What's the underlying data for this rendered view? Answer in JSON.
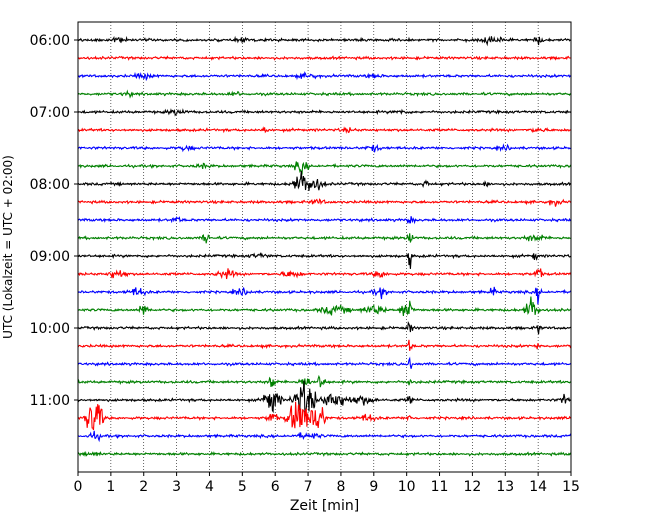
{
  "chart_data": {
    "type": "line",
    "title": "",
    "xlabel": "Zeit  [min]",
    "ylabel": "UTC (Lokalzeit = UTC + 02:00)",
    "xlim": [
      0,
      15
    ],
    "x_ticks": [
      0,
      1,
      2,
      3,
      4,
      5,
      6,
      7,
      8,
      9,
      10,
      11,
      12,
      13,
      14,
      15
    ],
    "y_tick_labels": [
      "06:00",
      "07:00",
      "08:00",
      "09:00",
      "10:00",
      "11:00"
    ],
    "grid": "vertical dotted lines at each minute",
    "series_colors": [
      "#000000",
      "#ff0000",
      "#0000ff",
      "#008000"
    ],
    "traces": [
      {
        "start": "06:00",
        "color": "#000000"
      },
      {
        "start": "06:15",
        "color": "#ff0000"
      },
      {
        "start": "06:30",
        "color": "#0000ff"
      },
      {
        "start": "06:45",
        "color": "#008000"
      },
      {
        "start": "07:00",
        "color": "#000000"
      },
      {
        "start": "07:15",
        "color": "#ff0000"
      },
      {
        "start": "07:30",
        "color": "#0000ff"
      },
      {
        "start": "07:45",
        "color": "#008000"
      },
      {
        "start": "08:00",
        "color": "#000000"
      },
      {
        "start": "08:15",
        "color": "#ff0000"
      },
      {
        "start": "08:30",
        "color": "#0000ff"
      },
      {
        "start": "08:45",
        "color": "#008000"
      },
      {
        "start": "09:00",
        "color": "#000000"
      },
      {
        "start": "09:15",
        "color": "#ff0000"
      },
      {
        "start": "09:30",
        "color": "#0000ff"
      },
      {
        "start": "09:45",
        "color": "#008000"
      },
      {
        "start": "10:00",
        "color": "#000000"
      },
      {
        "start": "10:15",
        "color": "#ff0000"
      },
      {
        "start": "10:30",
        "color": "#0000ff"
      },
      {
        "start": "10:45",
        "color": "#008000"
      },
      {
        "start": "11:00",
        "color": "#000000"
      },
      {
        "start": "11:15",
        "color": "#ff0000"
      },
      {
        "start": "11:30",
        "color": "#0000ff"
      },
      {
        "start": "11:45",
        "color": "#008000"
      }
    ]
  }
}
